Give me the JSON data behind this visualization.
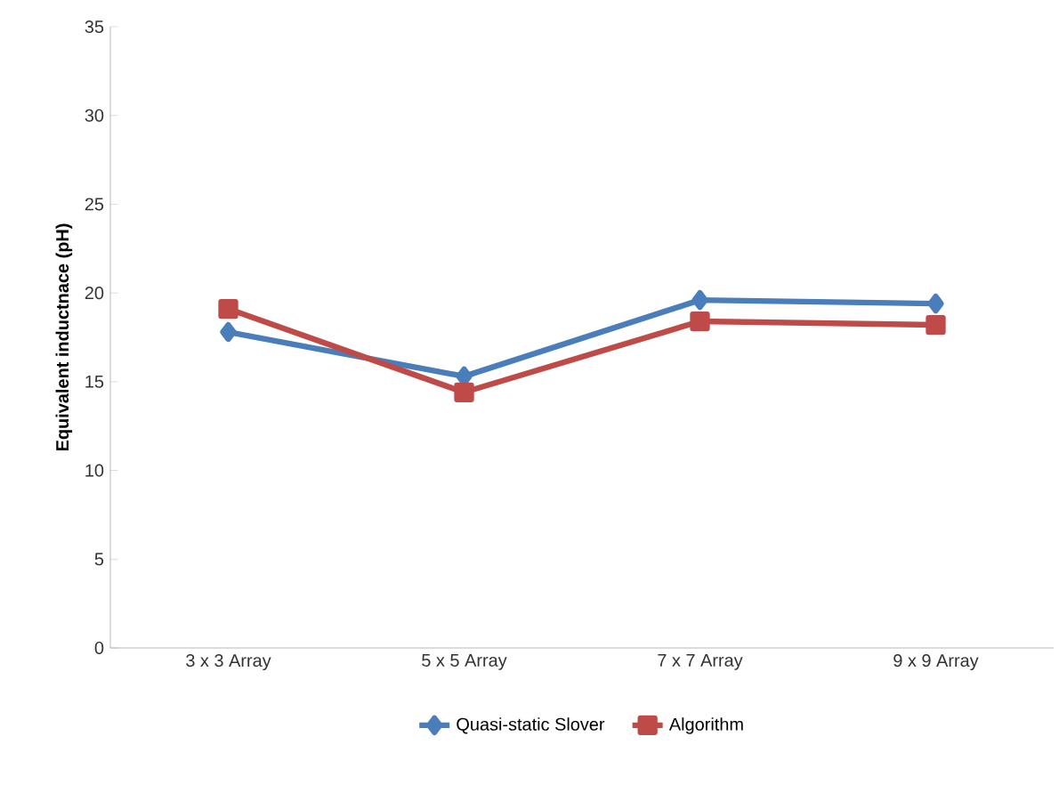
{
  "chart_data": {
    "type": "line",
    "ylabel": "Equivalent inductnace (pH)",
    "categories": [
      "3 x 3 Array",
      "5 x 5 Array",
      "7 x 7 Array",
      "9 x 9 Array"
    ],
    "series": [
      {
        "name": "Quasi-static Slover",
        "color": "#4a7ebb",
        "marker": "diamond",
        "values": [
          17.8,
          15.3,
          19.6,
          19.4
        ]
      },
      {
        "name": "Algorithm",
        "color": "#be4b48",
        "marker": "square",
        "values": [
          19.1,
          14.4,
          18.4,
          18.2
        ]
      }
    ],
    "ylim": [
      0,
      35
    ],
    "yticks": [
      0,
      5,
      10,
      15,
      20,
      25,
      30,
      35
    ],
    "grid": false,
    "legend": "bottom",
    "line_style": "solid"
  }
}
